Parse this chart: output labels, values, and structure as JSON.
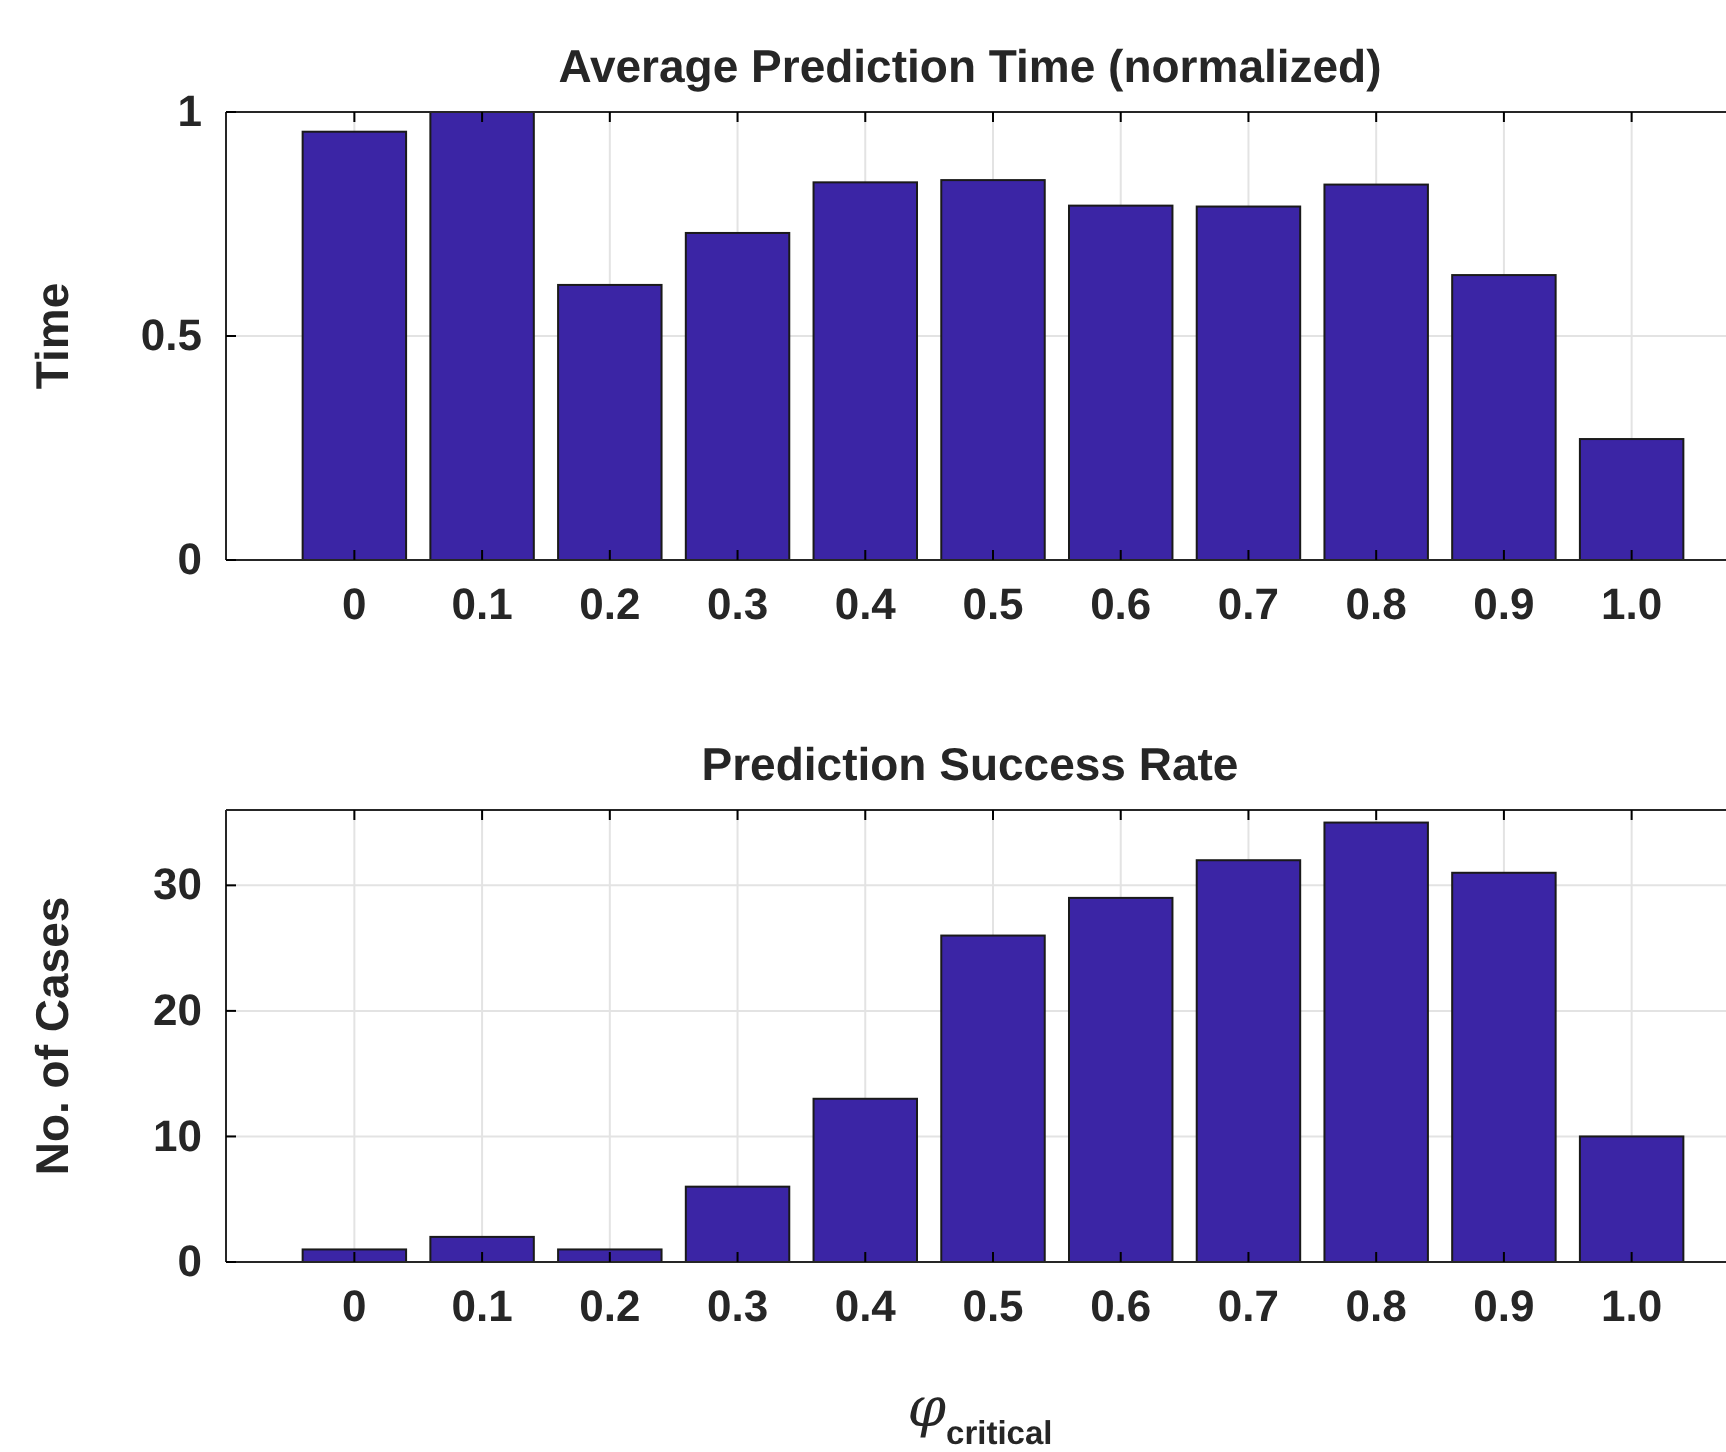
{
  "chart_data": [
    {
      "type": "bar",
      "title": "Average Prediction Time (normalized)",
      "ylabel": "Time",
      "categories": [
        "0",
        "0.1",
        "0.2",
        "0.3",
        "0.4",
        "0.5",
        "0.6",
        "0.7",
        "0.8",
        "0.9",
        "1.0"
      ],
      "values": [
        0.956,
        1.0,
        0.614,
        0.73,
        0.843,
        0.848,
        0.791,
        0.789,
        0.838,
        0.636,
        0.27
      ],
      "color": "#3b25a5",
      "ylim": [
        0,
        1
      ],
      "yticks": [
        0,
        0.5,
        1
      ],
      "grid": true
    },
    {
      "type": "bar",
      "title": "Prediction Success Rate",
      "ylabel": "No. of Cases",
      "xlabel": "φ$_{critical}$",
      "categories": [
        "0",
        "0.1",
        "0.2",
        "0.3",
        "0.4",
        "0.5",
        "0.6",
        "0.7",
        "0.8",
        "0.9",
        "1.0"
      ],
      "values": [
        1,
        2,
        1,
        6,
        13,
        26,
        29,
        32,
        35,
        31,
        10
      ],
      "color": "#3b25a5",
      "ylim": [
        0,
        36
      ],
      "yticks": [
        0,
        10,
        20,
        30
      ],
      "grid": true
    }
  ]
}
